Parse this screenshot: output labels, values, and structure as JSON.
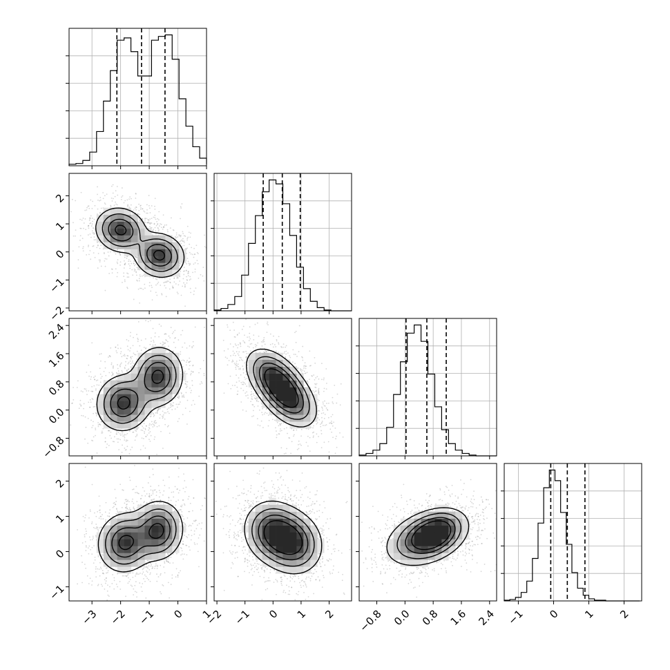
{
  "chart_data": {
    "type": "corner",
    "description_hidden": false,
    "parameters": 4,
    "colors": {
      "ink": "#000000",
      "grid": "#b0b0b0",
      "scatter": "#7a7a7a"
    },
    "grid": true,
    "axes": [
      {
        "range": [
          -3.8,
          1.0
        ],
        "ticks": [
          -3,
          -2,
          -1,
          0,
          1
        ],
        "tick_labels": [
          "−3",
          "−2",
          "−1",
          "0",
          "1"
        ]
      },
      {
        "range": [
          -2.1,
          2.8
        ],
        "ticks": [
          -2,
          -1,
          0,
          1,
          2
        ],
        "tick_labels": [
          "−2",
          "−1",
          "0",
          "1",
          "2"
        ]
      },
      {
        "range": [
          -1.3,
          2.6
        ],
        "ticks": [
          -0.8,
          0.0,
          0.8,
          1.6,
          2.4
        ],
        "tick_labels": [
          "−0.8",
          "0.0",
          "0.8",
          "1.6",
          "2.4"
        ]
      },
      {
        "range": [
          -1.4,
          2.5
        ],
        "ticks": [
          -1,
          0,
          1,
          2
        ],
        "tick_labels": [
          "−1",
          "0",
          "1",
          "2"
        ]
      }
    ],
    "marginals": [
      {
        "bins_x0": -3.8,
        "bin_width": 0.24,
        "counts": [
          2,
          3,
          7,
          18,
          45,
          85,
          125,
          165,
          168,
          150,
          118,
          118,
          165,
          170,
          172,
          140,
          88,
          52,
          25,
          10,
          4,
          2
        ],
        "quantiles": [
          -2.13,
          -1.27,
          -0.45
        ]
      },
      {
        "bins_x0": -2.1,
        "bin_width": 0.245,
        "counts": [
          1,
          3,
          8,
          18,
          45,
          85,
          120,
          150,
          165,
          160,
          135,
          95,
          55,
          28,
          12,
          4,
          1,
          0,
          0,
          0
        ],
        "quantiles": [
          -0.35,
          0.33,
          0.97
        ]
      },
      {
        "bins_x0": -1.3,
        "bin_width": 0.195,
        "counts": [
          1,
          3,
          7,
          15,
          35,
          75,
          115,
          150,
          160,
          140,
          100,
          60,
          32,
          15,
          7,
          3,
          1,
          0,
          0,
          0
        ],
        "quantiles": [
          0.03,
          0.62,
          1.17
        ]
      },
      {
        "bins_x0": -1.4,
        "bin_width": 0.16,
        "counts": [
          1,
          2,
          5,
          12,
          28,
          60,
          110,
          160,
          185,
          170,
          125,
          80,
          40,
          18,
          8,
          3,
          1,
          1,
          0,
          0,
          0,
          0,
          0,
          0
        ],
        "quantiles": [
          -0.08,
          0.39,
          0.89
        ]
      }
    ],
    "joint_blobs": {
      "1_0": [
        [
          -2.0,
          0.78,
          0.42,
          0.38,
          -0.1
        ],
        [
          -0.65,
          -0.12,
          0.42,
          0.38,
          -0.1
        ]
      ],
      "2_0": [
        [
          -1.9,
          0.2,
          0.45,
          0.38,
          0.05
        ],
        [
          -0.7,
          0.95,
          0.42,
          0.4,
          0.05
        ]
      ],
      "2_1": [
        [
          0.05,
          0.9,
          0.48,
          0.4,
          -0.45
        ],
        [
          0.55,
          0.35,
          0.48,
          0.4,
          -0.45
        ]
      ],
      "3_0": [
        [
          -1.85,
          0.25,
          0.45,
          0.4,
          0.05
        ],
        [
          -0.7,
          0.6,
          0.42,
          0.4,
          0.05
        ]
      ],
      "3_1": [
        [
          0.02,
          0.55,
          0.5,
          0.42,
          -0.1
        ],
        [
          0.7,
          0.25,
          0.5,
          0.42,
          -0.1
        ]
      ],
      "3_2": [
        [
          0.62,
          0.4,
          0.55,
          0.38,
          0.35
        ],
        [
          0.85,
          0.52,
          0.35,
          0.28,
          0.35
        ]
      ]
    }
  }
}
